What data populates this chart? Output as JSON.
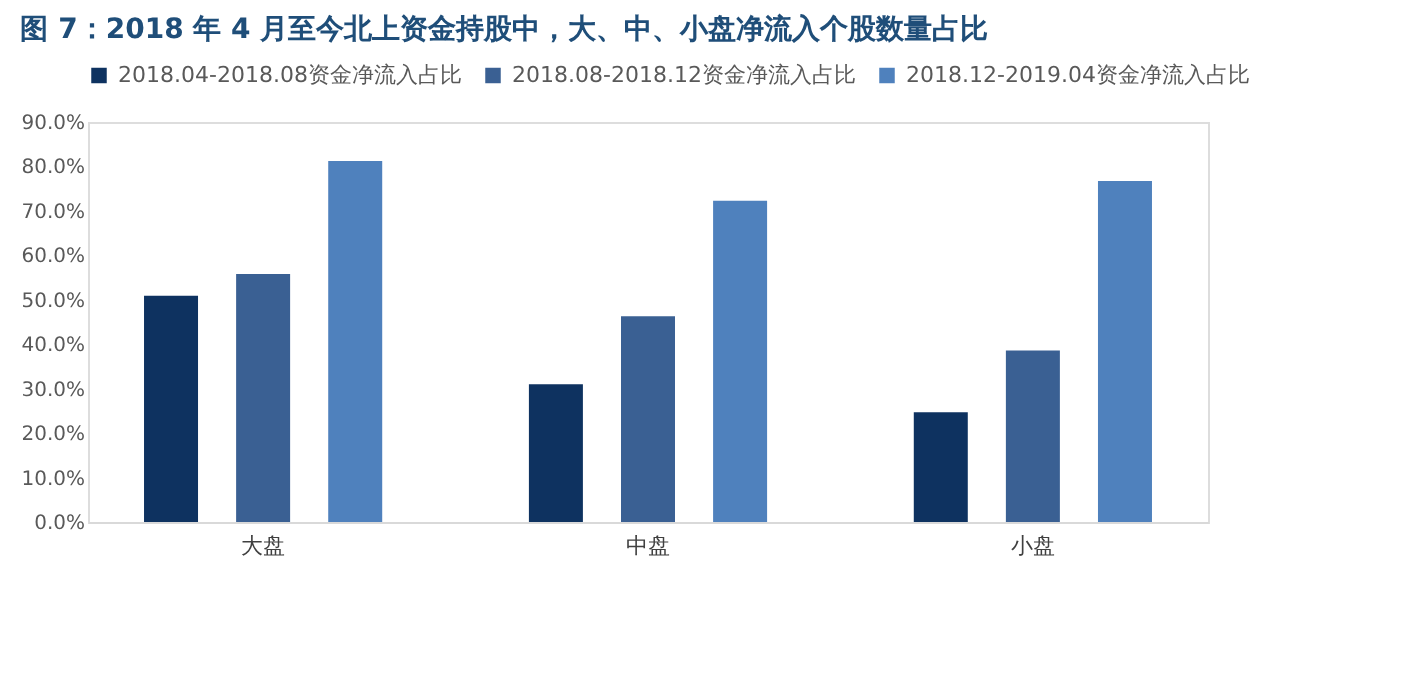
{
  "chart_data": {
    "type": "bar",
    "title": "图 7：2018 年 4 月至今北上资金持股中，大、中、小盘净流入个股数量占比",
    "categories": [
      "大盘",
      "中盘",
      "小盘"
    ],
    "series": [
      {
        "name": "2018.04-2018.08资金净流入占比",
        "color": "#0e3260",
        "values": [
          50.9,
          31.0,
          24.7
        ]
      },
      {
        "name": "2018.08-2018.12资金净流入占比",
        "color": "#3a6093",
        "values": [
          55.8,
          46.3,
          38.6
        ]
      },
      {
        "name": "2018.12-2019.04资金净流入占比",
        "color": "#4f81bd",
        "values": [
          81.2,
          72.3,
          76.7
        ]
      }
    ],
    "ylim": [
      0,
      90
    ],
    "yticks": [
      {
        "value": 0,
        "label": "0.0%"
      },
      {
        "value": 10,
        "label": "10.0%"
      },
      {
        "value": 20,
        "label": "20.0%"
      },
      {
        "value": 30,
        "label": "30.0%"
      },
      {
        "value": 40,
        "label": "40.0%"
      },
      {
        "value": 50,
        "label": "50.0%"
      },
      {
        "value": 60,
        "label": "60.0%"
      },
      {
        "value": 70,
        "label": "70.0%"
      },
      {
        "value": 80,
        "label": "80.0%"
      },
      {
        "value": 90,
        "label": "90.0%"
      }
    ],
    "grid": false,
    "legend": "top"
  }
}
